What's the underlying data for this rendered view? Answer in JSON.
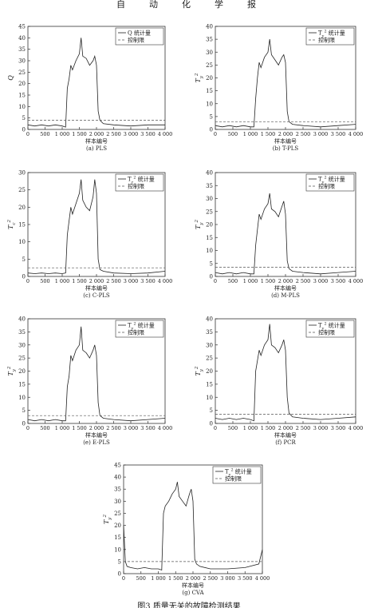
{
  "header": {
    "chars": [
      "自",
      "动",
      "化",
      "学",
      "报"
    ]
  },
  "caption": "图3 质量无关的故障检测结果",
  "chart_data": [
    {
      "type": "line",
      "panel": "(a) PLS",
      "title": "",
      "xlabel": "样本编号",
      "ylabel": "Q",
      "xlim": [
        0,
        4000
      ],
      "ylim": [
        0,
        45
      ],
      "xticks": [
        0,
        500,
        1000,
        1500,
        2000,
        2500,
        3000,
        3500,
        4000
      ],
      "xtick_labels": [
        "0",
        "500",
        "1 000",
        "1 500",
        "2 000",
        "2 500",
        "3 000",
        "3 500",
        "4 000"
      ],
      "yticks": [
        0,
        5,
        10,
        15,
        20,
        25,
        30,
        35,
        40,
        45
      ],
      "legend": {
        "position": "top-right",
        "entries": [
          "Q 统计量",
          "控制限"
        ]
      },
      "series": [
        {
          "name": "Q 统计量",
          "style": "solid",
          "x": [
            0,
            200,
            400,
            600,
            800,
            1000,
            1100,
            1150,
            1200,
            1250,
            1300,
            1400,
            1500,
            1550,
            1600,
            1700,
            1800,
            1900,
            1950,
            2000,
            2050,
            2100,
            2200,
            2500,
            3000,
            3500,
            4000
          ],
          "y": [
            2,
            1.5,
            2,
            1.5,
            2,
            1.5,
            1,
            18,
            22,
            28,
            26,
            30,
            33,
            40,
            32,
            31,
            28,
            30,
            32,
            28,
            8,
            4,
            2.5,
            2,
            1.5,
            2,
            2
          ]
        },
        {
          "name": "控制限",
          "style": "dashed",
          "x": [
            0,
            4000
          ],
          "y": [
            4,
            4
          ]
        }
      ]
    },
    {
      "type": "line",
      "panel": "(b) T-PLS",
      "title": "",
      "xlabel": "样本编号",
      "ylabel": "Ty²",
      "xlim": [
        0,
        4000
      ],
      "ylim": [
        0,
        40
      ],
      "xticks": [
        0,
        500,
        1000,
        1500,
        2000,
        2500,
        3000,
        3500,
        4000
      ],
      "xtick_labels": [
        "0",
        "500",
        "1 000",
        "1 500",
        "2 000",
        "2 500",
        "3 000",
        "3 500",
        "4 000"
      ],
      "yticks": [
        0,
        5,
        10,
        15,
        20,
        25,
        30,
        35,
        40
      ],
      "legend": {
        "position": "top-right",
        "entries": [
          "Ty² 统计量",
          "控制限"
        ]
      },
      "series": [
        {
          "name": "Ty² 统计量",
          "style": "solid",
          "x": [
            0,
            200,
            400,
            600,
            800,
            1000,
            1100,
            1150,
            1200,
            1250,
            1300,
            1400,
            1500,
            1550,
            1600,
            1700,
            1800,
            1900,
            1950,
            2000,
            2050,
            2100,
            2200,
            2500,
            3000,
            3500,
            4000
          ],
          "y": [
            1.5,
            1,
            1.5,
            1,
            1.5,
            1,
            1,
            12,
            20,
            26,
            24,
            28,
            30,
            35,
            29,
            27,
            25,
            28,
            29,
            26,
            7,
            3,
            2,
            1.5,
            1,
            1.5,
            2
          ]
        },
        {
          "name": "控制限",
          "style": "dashed",
          "x": [
            0,
            4000
          ],
          "y": [
            3,
            3
          ]
        }
      ]
    },
    {
      "type": "line",
      "panel": "(c) C-PLS",
      "title": "",
      "xlabel": "样本编号",
      "ylabel": "Tc²",
      "xlim": [
        0,
        4000
      ],
      "ylim": [
        0,
        30
      ],
      "xticks": [
        0,
        500,
        1000,
        1500,
        2000,
        2500,
        3000,
        3500,
        4000
      ],
      "xtick_labels": [
        "0",
        "500",
        "1 000",
        "1 500",
        "2 000",
        "2 500",
        "3 000",
        "3 500",
        "4 000"
      ],
      "yticks": [
        0,
        5,
        10,
        15,
        20,
        25,
        30
      ],
      "legend": {
        "position": "top-right",
        "entries": [
          "Tc² 统计量",
          "控制限"
        ]
      },
      "series": [
        {
          "name": "Tc² 统计量",
          "style": "solid",
          "x": [
            0,
            200,
            400,
            600,
            800,
            1000,
            1100,
            1150,
            1200,
            1250,
            1300,
            1400,
            1500,
            1550,
            1600,
            1700,
            1800,
            1900,
            1950,
            2000,
            2050,
            2100,
            2200,
            2500,
            3000,
            3500,
            4000
          ],
          "y": [
            1,
            0.8,
            1,
            0.8,
            1,
            0.8,
            1,
            12,
            16,
            20,
            18,
            21,
            24,
            28,
            22,
            20,
            19,
            23,
            28,
            24,
            5,
            2,
            1.5,
            1,
            0.8,
            1,
            1.5
          ]
        },
        {
          "name": "控制限",
          "style": "dashed",
          "x": [
            0,
            4000
          ],
          "y": [
            2.5,
            2.5
          ]
        }
      ]
    },
    {
      "type": "line",
      "panel": "(d) M-PLS",
      "title": "",
      "xlabel": "样本编号",
      "ylabel": "Ty²",
      "xlim": [
        0,
        4000
      ],
      "ylim": [
        0,
        40
      ],
      "xticks": [
        0,
        500,
        1000,
        1500,
        2000,
        2500,
        3000,
        3500,
        4000
      ],
      "xtick_labels": [
        "0",
        "500",
        "1 000",
        "1 500",
        "2 000",
        "2 500",
        "3 000",
        "3 500",
        "4 000"
      ],
      "yticks": [
        0,
        5,
        10,
        15,
        20,
        25,
        30,
        35,
        40
      ],
      "legend": {
        "position": "top-right",
        "entries": [
          "Ty² 统计量",
          "控制限"
        ]
      },
      "series": [
        {
          "name": "Ty² 统计量",
          "style": "solid",
          "x": [
            0,
            200,
            400,
            600,
            800,
            1000,
            1100,
            1150,
            1200,
            1250,
            1300,
            1400,
            1500,
            1550,
            1600,
            1700,
            1800,
            1900,
            1950,
            2000,
            2050,
            2100,
            2200,
            2500,
            3000,
            3500,
            4000
          ],
          "y": [
            1.5,
            1,
            1.5,
            1,
            1.5,
            1,
            1,
            12,
            18,
            24,
            22,
            26,
            28,
            32,
            26,
            25,
            23,
            27,
            29,
            24,
            6,
            3,
            2,
            1.5,
            1,
            1.5,
            2
          ]
        },
        {
          "name": "控制限",
          "style": "dashed",
          "x": [
            0,
            4000
          ],
          "y": [
            3.5,
            3.5
          ]
        }
      ]
    },
    {
      "type": "line",
      "panel": "(e) E-PLS",
      "title": "",
      "xlabel": "样本编号",
      "ylabel": "Ty²",
      "xlim": [
        0,
        4000
      ],
      "ylim": [
        0,
        40
      ],
      "xticks": [
        0,
        500,
        1000,
        1500,
        2000,
        2500,
        3000,
        3500,
        4000
      ],
      "xtick_labels": [
        "0",
        "500",
        "1 000",
        "1 500",
        "2 000",
        "2 500",
        "3 000",
        "3 500",
        "4 000"
      ],
      "yticks": [
        0,
        5,
        10,
        15,
        20,
        25,
        30,
        35,
        40
      ],
      "legend": {
        "position": "top-right",
        "entries": [
          "Ty² 统计量",
          "控制限"
        ]
      },
      "series": [
        {
          "name": "Ty² 统计量",
          "style": "solid",
          "x": [
            0,
            200,
            400,
            600,
            800,
            1000,
            1100,
            1150,
            1200,
            1250,
            1300,
            1400,
            1500,
            1550,
            1600,
            1700,
            1800,
            1900,
            1950,
            2000,
            2050,
            2100,
            2200,
            2500,
            3000,
            3500,
            4000
          ],
          "y": [
            1.5,
            1,
            1.5,
            1,
            1.5,
            1,
            1,
            14,
            18,
            26,
            24,
            28,
            30,
            37,
            28,
            27,
            25,
            28,
            30,
            26,
            8,
            3,
            2,
            1.5,
            1,
            1.5,
            2
          ]
        },
        {
          "name": "控制限",
          "style": "dashed",
          "x": [
            0,
            4000
          ],
          "y": [
            3,
            3
          ]
        }
      ]
    },
    {
      "type": "line",
      "panel": "(f) PCR",
      "title": "",
      "xlabel": "样本编号",
      "ylabel": "Ty²",
      "xlim": [
        0,
        4000
      ],
      "ylim": [
        0,
        40
      ],
      "xticks": [
        0,
        500,
        1000,
        1500,
        2000,
        2500,
        3000,
        3500,
        4000
      ],
      "xtick_labels": [
        "0",
        "500",
        "1 000",
        "1 500",
        "2 000",
        "2 500",
        "3 000",
        "3 500",
        "4 000"
      ],
      "yticks": [
        0,
        5,
        10,
        15,
        20,
        25,
        30,
        35,
        40
      ],
      "legend": {
        "position": "top-right",
        "entries": [
          "Ty² 统计量",
          "控制限"
        ]
      },
      "series": [
        {
          "name": "Ty² 统计量",
          "style": "solid",
          "x": [
            0,
            200,
            400,
            600,
            800,
            1000,
            1100,
            1150,
            1200,
            1250,
            1300,
            1400,
            1500,
            1550,
            1600,
            1700,
            1800,
            1900,
            1950,
            2000,
            2050,
            2100,
            2200,
            2500,
            3000,
            3500,
            4000
          ],
          "y": [
            2,
            1.5,
            2,
            1.5,
            2,
            1.5,
            1,
            20,
            24,
            28,
            26,
            30,
            32,
            38,
            30,
            29,
            27,
            30,
            32,
            28,
            10,
            4,
            2.5,
            2,
            1.5,
            2,
            2.5
          ]
        },
        {
          "name": "控制限",
          "style": "dashed",
          "x": [
            0,
            4000
          ],
          "y": [
            3.5,
            3.5
          ]
        }
      ]
    },
    {
      "type": "line",
      "panel": "(g) CVA",
      "title": "",
      "xlabel": "样本编号",
      "ylabel": "Ty²",
      "xlim": [
        0,
        4000
      ],
      "ylim": [
        0,
        45
      ],
      "xticks": [
        0,
        500,
        1000,
        1500,
        2000,
        2500,
        3000,
        3500,
        4000
      ],
      "xtick_labels": [
        "0",
        "500",
        "1 000",
        "1 500",
        "2 000",
        "2 500",
        "3 000",
        "3 500",
        "4 000"
      ],
      "yticks": [
        0,
        5,
        10,
        15,
        20,
        25,
        30,
        35,
        40,
        45
      ],
      "legend": {
        "position": "top-right",
        "entries": [
          "Ty² 统计量",
          "控制限"
        ]
      },
      "series": [
        {
          "name": "Ty² 统计量",
          "style": "solid",
          "x": [
            0,
            50,
            100,
            200,
            400,
            600,
            800,
            1000,
            1100,
            1150,
            1200,
            1300,
            1400,
            1500,
            1550,
            1600,
            1700,
            1800,
            1900,
            1950,
            2000,
            2050,
            2100,
            2200,
            2500,
            3000,
            3500,
            3900,
            4000
          ],
          "y": [
            20,
            5,
            3,
            2.5,
            2,
            2.5,
            2,
            2,
            1.5,
            25,
            28,
            30,
            33,
            35,
            38,
            32,
            30,
            28,
            33,
            35,
            30,
            6,
            4,
            3,
            2,
            2,
            2.5,
            4,
            10
          ]
        },
        {
          "name": "控制限",
          "style": "dashed",
          "x": [
            0,
            4000
          ],
          "y": [
            5,
            5
          ]
        }
      ]
    }
  ]
}
